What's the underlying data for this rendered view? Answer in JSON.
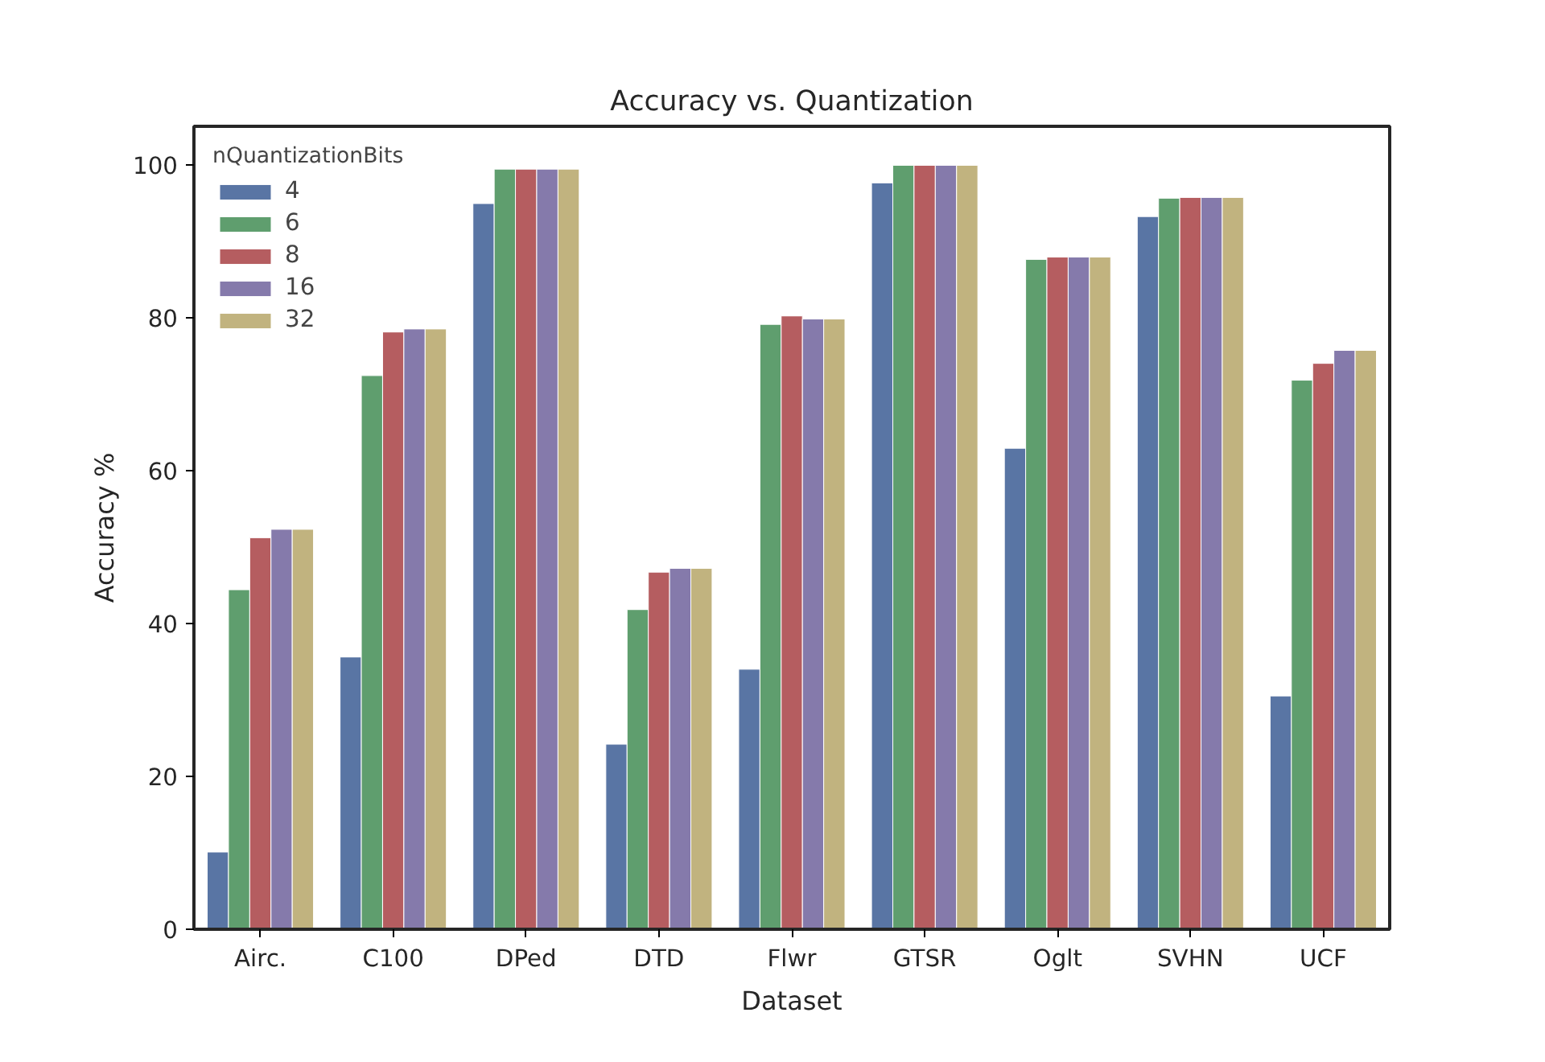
{
  "chart_data": {
    "type": "bar",
    "title": "Accuracy vs. Quantization",
    "xlabel": "Dataset",
    "ylabel": "Accuracy %",
    "legend_title": "nQuantizationBits",
    "legend": "top left",
    "grid": false,
    "categories": [
      "Airc.",
      "C100",
      "DPed",
      "DTD",
      "Flwr",
      "GTSR",
      "Oglt",
      "SVHN",
      "UCF"
    ],
    "ylim": [
      0,
      105
    ],
    "yticks": [
      0,
      20,
      40,
      60,
      80,
      100
    ],
    "series": [
      {
        "name": "4",
        "color": "#5975a4",
        "values": [
          10.1,
          35.6,
          94.9,
          24.2,
          34.0,
          97.6,
          62.9,
          93.2,
          30.5
        ]
      },
      {
        "name": "6",
        "color": "#5f9e6e",
        "values": [
          44.4,
          72.4,
          99.4,
          41.8,
          79.1,
          99.9,
          87.6,
          95.6,
          71.8
        ]
      },
      {
        "name": "8",
        "color": "#b55d60",
        "values": [
          51.2,
          78.1,
          99.4,
          46.7,
          80.2,
          99.9,
          87.9,
          95.7,
          74.0
        ]
      },
      {
        "name": "16",
        "color": "#857aab",
        "values": [
          52.3,
          78.5,
          99.4,
          47.2,
          79.8,
          99.9,
          87.9,
          95.7,
          75.7
        ]
      },
      {
        "name": "32",
        "color": "#c1b37f",
        "values": [
          52.3,
          78.5,
          99.4,
          47.2,
          79.8,
          99.9,
          87.9,
          95.7,
          75.7
        ]
      }
    ]
  }
}
